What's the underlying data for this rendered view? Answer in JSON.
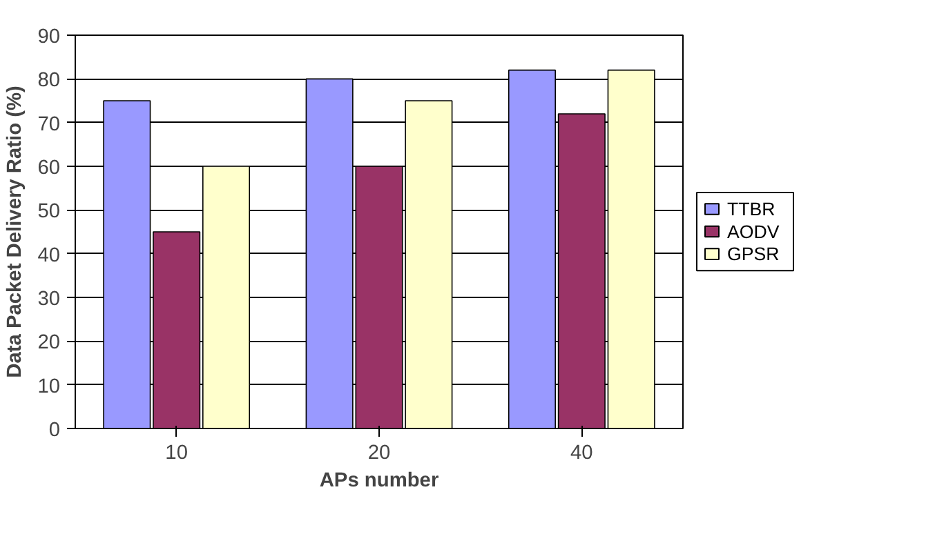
{
  "chart_data": {
    "type": "bar",
    "xlabel": "APs number",
    "ylabel": "Data Packet Delivery Ratio (%)",
    "categories": [
      "10",
      "20",
      "40"
    ],
    "series": [
      {
        "name": "TTBR",
        "color": "#9999ff",
        "values": [
          75,
          80,
          82
        ]
      },
      {
        "name": "AODV",
        "color": "#993366",
        "values": [
          45,
          60,
          72
        ]
      },
      {
        "name": "GPSR",
        "color": "#ffffcc",
        "values": [
          60,
          75,
          82
        ]
      }
    ],
    "ylim": [
      0,
      90
    ],
    "yticks": [
      0,
      10,
      20,
      30,
      40,
      50,
      60,
      70,
      80,
      90
    ],
    "grid": "y",
    "legend": "right"
  }
}
